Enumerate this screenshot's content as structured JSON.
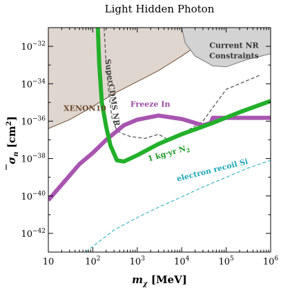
{
  "chart_data": {
    "type": "line",
    "title": "Light Hidden Photon",
    "xlabel": {
      "text": "m",
      "sub": "χ",
      "unit": " [MeV]"
    },
    "ylabel": {
      "text": "σ",
      "sub": "n",
      "unit": " [cm",
      "unit_sup": "2",
      "unit_end": "]"
    },
    "x_scale": "log",
    "y_scale": "log",
    "xlim": [
      10,
      1000000
    ],
    "ylim": [
      1e-43,
      1e-31
    ],
    "x_ticks": [
      {
        "value": 10,
        "base": "10",
        "exp": ""
      },
      {
        "value": 100,
        "base": "10",
        "exp": "2"
      },
      {
        "value": 1000,
        "base": "10",
        "exp": "3"
      },
      {
        "value": 10000,
        "base": "10",
        "exp": "4"
      },
      {
        "value": 100000,
        "base": "10",
        "exp": "5"
      },
      {
        "value": 1000000,
        "base": "10",
        "exp": "6"
      }
    ],
    "y_ticks": [
      {
        "value": 1e-32,
        "base": "10",
        "exp": "−32"
      },
      {
        "value": 1e-34,
        "base": "10",
        "exp": "−34"
      },
      {
        "value": 1e-36,
        "base": "10",
        "exp": "−36"
      },
      {
        "value": 1e-38,
        "base": "10",
        "exp": "−38"
      },
      {
        "value": 1e-40,
        "base": "10",
        "exp": "−40"
      },
      {
        "value": 1e-42,
        "base": "10",
        "exp": "−42"
      }
    ],
    "regions": [
      {
        "label": "XENON10",
        "color": "#e0d6d0",
        "edge": "#6b4a2e",
        "label_color": "#6b4a2e",
        "label_pos": {
          "x": 22,
          "y": 3.5e-36
        },
        "points": [
          [
            10,
            4e-37
          ],
          [
            30,
            1.2e-36
          ],
          [
            100,
            6e-36
          ],
          [
            300,
            3e-35
          ],
          [
            1000,
            1.3e-34
          ],
          [
            3000,
            5e-34
          ],
          [
            10000,
            3e-33
          ],
          [
            30000,
            1.8e-32
          ],
          [
            100000,
            1.5e-31
          ],
          [
            1000000,
            1e-31
          ]
        ]
      },
      {
        "label": "Current NR\nConstraints",
        "color": "#d3d3d3",
        "edge": "#777777",
        "label_color": "#333333",
        "label_pos": {
          "x": 150000,
          "y": 8e-33
        },
        "points": [
          [
            10000,
            1e-31
          ],
          [
            12000,
            1.5e-32
          ],
          [
            20000,
            3e-33
          ],
          [
            50000,
            9e-34
          ],
          [
            100000,
            8e-34
          ],
          [
            300000,
            2e-33
          ],
          [
            1000000,
            4e-33
          ],
          [
            1000000,
            1e-31
          ]
        ]
      }
    ],
    "series": [
      {
        "label": "SuperCDMS NR",
        "color": "#555555",
        "style": "dashed",
        "width": 1.3,
        "label_color": "#444444",
        "label_pos": {
          "x": 190,
          "y": 2e-33
        },
        "label_rotate": 82,
        "points": [
          [
            180,
            1e-31
          ],
          [
            200,
            1e-33
          ],
          [
            230,
            3e-35
          ],
          [
            270,
            1.5e-36
          ],
          [
            350,
            3e-37
          ],
          [
            500,
            2e-37
          ],
          [
            700,
            1.5e-37
          ],
          [
            1500,
            1.2e-37
          ],
          [
            3000,
            2e-37
          ],
          [
            5000,
            1e-37
          ],
          [
            10000,
            2e-37
          ],
          [
            30000,
            1e-36
          ],
          [
            100000,
            5e-35
          ],
          [
            300000,
            1.5e-34
          ],
          [
            600000,
            3e-34
          ]
        ]
      },
      {
        "label": "electron recoil Si",
        "color": "#2bb1c0",
        "style": "dashed",
        "width": 1.1,
        "label_color": "#1aa6b6",
        "label_pos": {
          "x": 8000,
          "y": 6e-40
        },
        "label_rotate": -14,
        "points": [
          [
            70,
            1e-43
          ],
          [
            100,
            2e-43
          ],
          [
            300,
            1.5e-42
          ],
          [
            1000,
            7e-42
          ],
          [
            3000,
            2.5e-41
          ],
          [
            10000,
            9e-41
          ],
          [
            30000,
            3e-40
          ],
          [
            100000,
            1e-39
          ],
          [
            300000,
            3e-39
          ],
          [
            1000000,
            8e-39
          ]
        ]
      },
      {
        "label": "Freeze In",
        "color": "#a855b0",
        "style": "solid",
        "width": 6,
        "label_color": "#9a4aa3",
        "label_pos": {
          "x": 700,
          "y": 6e-36
        },
        "points": [
          [
            10,
            6e-41
          ],
          [
            20,
            4e-40
          ],
          [
            50,
            5e-39
          ],
          [
            100,
            2e-38
          ],
          [
            200,
            1e-37
          ],
          [
            500,
            6e-37
          ],
          [
            1000,
            1.2e-36
          ],
          [
            3000,
            2e-36
          ],
          [
            10000,
            1.3e-36
          ],
          [
            30000,
            6e-37
          ],
          [
            45000,
            8e-37
          ],
          [
            50000,
            1.5e-36
          ],
          [
            300000,
            1.5e-36
          ],
          [
            1000000,
            1.5e-36
          ]
        ]
      },
      {
        "label": "1 kg·yr N",
        "label_sub": "2",
        "color": "#22b02a",
        "style": "solid",
        "width": 6,
        "label_color": "#1c9a24",
        "label_pos": {
          "x": 1800,
          "y": 7e-39
        },
        "label_rotate": -16,
        "points": [
          [
            130,
            1e-31
          ],
          [
            140,
            1e-33
          ],
          [
            160,
            1e-35
          ],
          [
            200,
            5e-37
          ],
          [
            250,
            5e-38
          ],
          [
            350,
            8e-39
          ],
          [
            500,
            7e-39
          ],
          [
            1000,
            1.5e-38
          ],
          [
            3000,
            6e-38
          ],
          [
            10000,
            2e-37
          ],
          [
            50000,
            8e-37
          ],
          [
            200000,
            3e-36
          ],
          [
            1000000,
            1.2e-35
          ]
        ]
      }
    ]
  }
}
